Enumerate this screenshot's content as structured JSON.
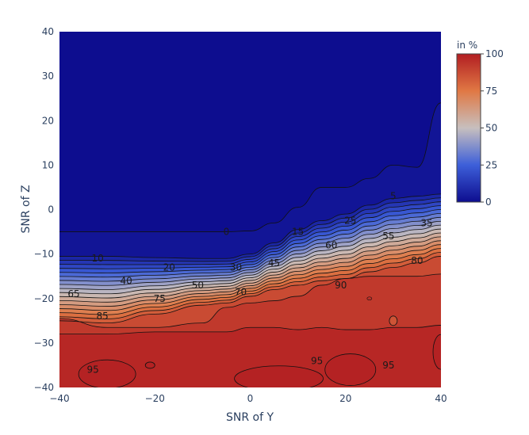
{
  "chart_data": {
    "type": "heatmap",
    "subtype": "filled contour",
    "xlabel": "SNR of Y",
    "ylabel": "SNR of Z",
    "xlim": [
      -40,
      40
    ],
    "ylim": [
      -40,
      40
    ],
    "x_ticks": [
      "−40",
      "−20",
      "0",
      "20",
      "40"
    ],
    "y_ticks": [
      "−40",
      "−30",
      "−20",
      "−10",
      "0",
      "10",
      "20",
      "30",
      "40"
    ],
    "colorbar": {
      "title": "in %",
      "range": [
        0,
        100
      ],
      "ticks": [
        "0",
        "25",
        "50",
        "75",
        "100"
      ],
      "colors": [
        "#0d0d8f",
        "#3d5fd9",
        "#c7bfbe",
        "#e07844",
        "#b21e22"
      ]
    },
    "contour_levels": [
      0,
      5,
      10,
      15,
      20,
      25,
      30,
      35,
      40,
      45,
      50,
      55,
      60,
      65,
      70,
      75,
      80,
      85,
      90,
      95
    ],
    "contour_label_points": [
      {
        "x": -5,
        "y": -5,
        "value": 0
      },
      {
        "x": 30,
        "y": 3,
        "value": 5
      },
      {
        "x": -32,
        "y": -11,
        "value": 10
      },
      {
        "x": 10,
        "y": -5,
        "value": 15
      },
      {
        "x": -17,
        "y": -13,
        "value": 20
      },
      {
        "x": 21,
        "y": -2.5,
        "value": 25
      },
      {
        "x": -3,
        "y": -13,
        "value": 30
      },
      {
        "x": 37,
        "y": -3,
        "value": 35
      },
      {
        "x": -26,
        "y": -16,
        "value": 40
      },
      {
        "x": 5,
        "y": -12,
        "value": 45
      },
      {
        "x": -11,
        "y": -17,
        "value": 50
      },
      {
        "x": 29,
        "y": -6,
        "value": 55
      },
      {
        "x": 17,
        "y": -8,
        "value": 60
      },
      {
        "x": -37,
        "y": -19,
        "value": 65
      },
      {
        "x": -2,
        "y": -18.5,
        "value": 70
      },
      {
        "x": -19,
        "y": -20,
        "value": 75
      },
      {
        "x": 35,
        "y": -11.5,
        "value": 80
      },
      {
        "x": -31,
        "y": -24,
        "value": 85
      },
      {
        "x": 19,
        "y": -17,
        "value": 90
      },
      {
        "x": -33,
        "y": -36,
        "value": 95
      },
      {
        "x": 14,
        "y": -34,
        "value": 95
      },
      {
        "x": 29,
        "y": -35,
        "value": 95
      }
    ],
    "grid": false
  }
}
